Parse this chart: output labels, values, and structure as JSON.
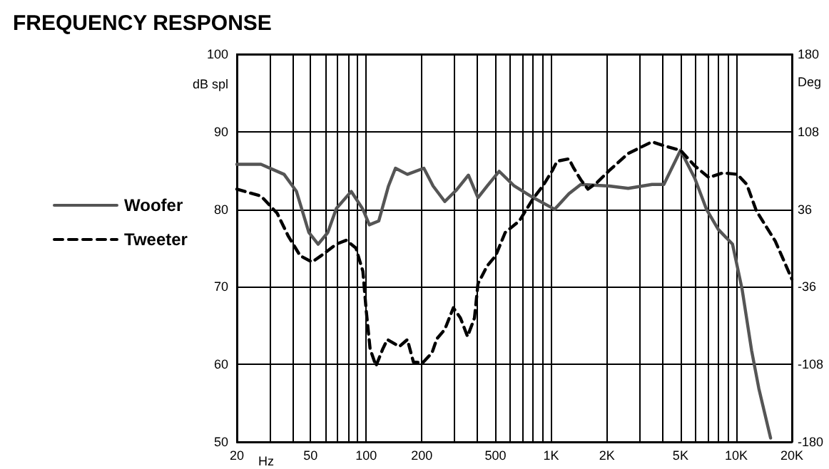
{
  "chart_data": {
    "type": "line",
    "title": "FREQUENCY RESPONSE",
    "xlabel": "Hz",
    "ylabel": "dB spl",
    "y2label": "Deg",
    "log": "x",
    "grid": true,
    "legend": "left",
    "marker": "none",
    "xlim": [
      20,
      20000
    ],
    "xticks": [
      20,
      {
        "value": 30,
        "label": null
      },
      {
        "value": 40,
        "label": null
      },
      50,
      {
        "value": 60,
        "label": null
      },
      {
        "value": 70,
        "label": null
      },
      {
        "value": 80,
        "label": null
      },
      {
        "value": 90,
        "label": null
      },
      100,
      200,
      {
        "value": 300,
        "label": null
      },
      {
        "value": 400,
        "label": null
      },
      500,
      {
        "value": 600,
        "label": null
      },
      {
        "value": 700,
        "label": null
      },
      {
        "value": 800,
        "label": null
      },
      {
        "value": 900,
        "label": null
      },
      {
        "value": 1000,
        "label": "1K"
      },
      {
        "value": 2000,
        "label": "2K"
      },
      {
        "value": 3000,
        "label": null
      },
      {
        "value": 4000,
        "label": null
      },
      {
        "value": 5000,
        "label": "5K"
      },
      {
        "value": 6000,
        "label": null
      },
      {
        "value": 7000,
        "label": null
      },
      {
        "value": 8000,
        "label": null
      },
      {
        "value": 9000,
        "label": null
      },
      {
        "value": 10000,
        "label": "10K"
      },
      {
        "value": 20000,
        "label": "20K"
      }
    ],
    "ylim": [
      50,
      100
    ],
    "yticks": [
      50,
      60,
      70,
      80,
      90,
      100
    ],
    "y2lim": [
      -180,
      180
    ],
    "y2ticks": [
      -180,
      -108,
      -36,
      36,
      108,
      180
    ],
    "series": [
      {
        "name": "Woofer",
        "color": "#555555",
        "line_style": "solid",
        "x": [
          20,
          27,
          36,
          42,
          49,
          55,
          62,
          69,
          83,
          96,
          104,
          117,
          132,
          144,
          167,
          205,
          230,
          266,
          308,
          357,
          402,
          451,
          523,
          632,
          800,
          1045,
          1247,
          1446,
          2061,
          2608,
          3507,
          4063,
          5000,
          5970,
          6904,
          8000,
          9550,
          10760,
          12110,
          13250,
          15340
        ],
        "values": [
          85.8,
          85.8,
          84.5,
          82.3,
          77,
          75.5,
          77,
          80.1,
          82.3,
          80,
          78,
          78.5,
          83,
          85.3,
          84.5,
          85.3,
          83,
          81,
          82.5,
          84.4,
          81.5,
          83,
          84.9,
          83,
          81.5,
          80,
          82,
          83.2,
          83,
          82.7,
          83.2,
          83.2,
          87.6,
          84,
          80,
          77.4,
          75.5,
          69.7,
          61.8,
          56.9,
          50.5
        ]
      },
      {
        "name": "Tweeter",
        "color": "#000000",
        "line_style": "dashed",
        "x": [
          20,
          27,
          33,
          38,
          44,
          51,
          57,
          69,
          78,
          88,
          96,
          100,
          105,
          113,
          123,
          130,
          151,
          167,
          180,
          202,
          227,
          241,
          266,
          296,
          323,
          353,
          385,
          402,
          451,
          501,
          564,
          673,
          800,
          901,
          1015,
          1076,
          1247,
          1324,
          1446,
          1581,
          1778,
          2061,
          2608,
          3507,
          4063,
          5000,
          5970,
          7110,
          8490,
          10140,
          11410,
          12850,
          16250,
          20000
        ],
        "values": [
          82.6,
          81.7,
          79.5,
          76.5,
          74,
          73.2,
          74,
          75.5,
          76,
          75,
          72,
          67,
          62,
          59.8,
          62,
          63.2,
          62.3,
          63.2,
          60.3,
          60.2,
          61.5,
          63.3,
          64.5,
          67.3,
          66,
          63.6,
          66,
          70.4,
          72.7,
          74,
          77,
          78.5,
          81.4,
          83,
          85,
          86.2,
          86.5,
          85.3,
          83.8,
          82.6,
          83.5,
          85,
          87.2,
          88.7,
          88.2,
          87.6,
          85.6,
          84.1,
          84.7,
          84.5,
          83.2,
          79.8,
          75.9,
          71
        ]
      }
    ]
  }
}
